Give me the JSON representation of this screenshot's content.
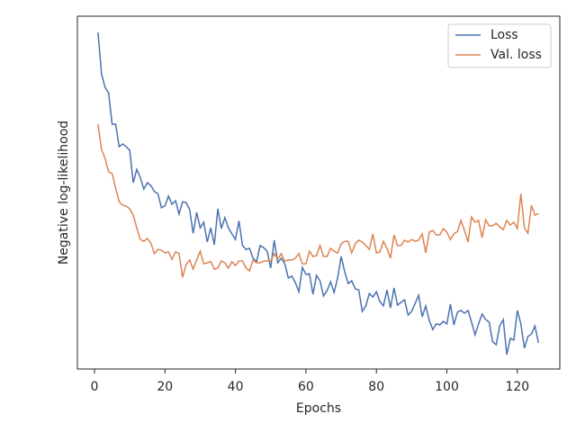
{
  "chart_data": {
    "type": "line",
    "xlabel": "Epochs",
    "ylabel": "Negative log-likelihood",
    "x": [
      1,
      2,
      3,
      4,
      5,
      6,
      7,
      8,
      9,
      10,
      11,
      12,
      13,
      14,
      15,
      16,
      17,
      18,
      19,
      20,
      21,
      22,
      23,
      24,
      25,
      26,
      27,
      28,
      29,
      30,
      31,
      32,
      33,
      34,
      35,
      36,
      37,
      38,
      39,
      40,
      41,
      42,
      43,
      44,
      45,
      46,
      47,
      48,
      49,
      50,
      51,
      52,
      53,
      54,
      55,
      56,
      57,
      58,
      59,
      60,
      61,
      62,
      63,
      64,
      65,
      66,
      67,
      68,
      69,
      70,
      71,
      72,
      73,
      74,
      75,
      76,
      77,
      78,
      79,
      80,
      81,
      82,
      83,
      84,
      85,
      86,
      87,
      88,
      89,
      90,
      91,
      92,
      93,
      94,
      95,
      96,
      97,
      98,
      99,
      100,
      101,
      102,
      103,
      104,
      105,
      106,
      107,
      108,
      109,
      110,
      111,
      112,
      113,
      114,
      115,
      116,
      117,
      118,
      119,
      120,
      121,
      122,
      123,
      124,
      125,
      126
    ],
    "series": [
      {
        "name": "Loss",
        "color": "#4c72b0",
        "values": [
          95.4,
          83.7,
          79.8,
          78.3,
          69.4,
          69.4,
          63,
          63.8,
          63,
          62,
          52.8,
          56.6,
          54.3,
          51,
          52.8,
          52,
          50.3,
          49.7,
          45.7,
          46.2,
          49,
          46.7,
          47.7,
          43.9,
          47.4,
          47.2,
          45.2,
          38.5,
          44.4,
          40,
          41.6,
          36,
          40,
          35.2,
          45.4,
          39.8,
          42.9,
          40,
          38.3,
          36.7,
          42,
          35,
          33.9,
          34.2,
          31.4,
          30.4,
          35,
          34.4,
          33.4,
          28.6,
          36.5,
          30.1,
          31.4,
          29.8,
          25.8,
          26.3,
          24.5,
          21.9,
          28.8,
          26.8,
          27,
          21.2,
          26.5,
          25,
          20.7,
          22.2,
          24.7,
          21.7,
          25.8,
          31.9,
          27.6,
          24.2,
          25,
          22.7,
          22.4,
          16.3,
          17.9,
          21.4,
          20.4,
          21.9,
          19.1,
          17.9,
          22.4,
          17.3,
          23,
          18.1,
          18.9,
          19.6,
          15.3,
          16.3,
          18.6,
          20.9,
          14.8,
          17.9,
          13.8,
          11.2,
          12.8,
          12.5,
          13.5,
          12.8,
          18.4,
          12.5,
          16.1,
          16.6,
          15.8,
          16.6,
          13.3,
          9.7,
          12.8,
          15.6,
          14,
          13.3,
          7.7,
          6.9,
          12.2,
          14,
          4.1,
          8.7,
          8.2,
          16.6,
          12.8,
          5.9,
          9.2,
          9.9,
          12.2,
          7.4
        ]
      },
      {
        "name": "Val. loss",
        "color": "#dd8452",
        "values": [
          69.4,
          62.2,
          59.7,
          55.9,
          55.4,
          51.3,
          47.4,
          46.4,
          46.2,
          45.4,
          43.6,
          40,
          36.7,
          36.2,
          37,
          35.7,
          32.7,
          33.9,
          33.7,
          32.9,
          33.2,
          31.1,
          33.2,
          32.7,
          26,
          29.6,
          30.9,
          28.3,
          30.9,
          33.4,
          29.8,
          30.1,
          30.4,
          28.3,
          28.6,
          30.6,
          30.1,
          28.6,
          30.4,
          29.3,
          30.6,
          30.6,
          28.6,
          27.8,
          30.9,
          30.1,
          30.1,
          30.6,
          30.6,
          30.6,
          32.7,
          31.1,
          32.7,
          30.6,
          30.9,
          30.9,
          31.4,
          32.7,
          29.8,
          29.8,
          33.4,
          31.9,
          32.1,
          35,
          31.9,
          31.9,
          34.2,
          33.4,
          32.9,
          35.5,
          36.2,
          36.2,
          32.9,
          35.5,
          36.5,
          36,
          35,
          33.9,
          38.3,
          32.9,
          33.2,
          36.2,
          34.2,
          31.4,
          38,
          35,
          35,
          36.5,
          36,
          36.7,
          36.2,
          36.5,
          38.3,
          32.9,
          38.8,
          39.3,
          38,
          38,
          39.8,
          38.8,
          36.7,
          38.3,
          39,
          42.1,
          39.3,
          36,
          43.1,
          41.6,
          42.1,
          37.2,
          42.3,
          40.6,
          40.6,
          41.3,
          40.3,
          39.5,
          42.1,
          40.8,
          41.6,
          39.8,
          49.7,
          40,
          38.5,
          46.4,
          43.6,
          44.1
        ]
      }
    ],
    "xlim": [
      -4.85,
      132.05
    ],
    "ylim": [
      0,
      100
    ],
    "xticks": [
      0,
      20,
      40,
      60,
      80,
      100,
      120
    ],
    "legend": "upper right"
  }
}
